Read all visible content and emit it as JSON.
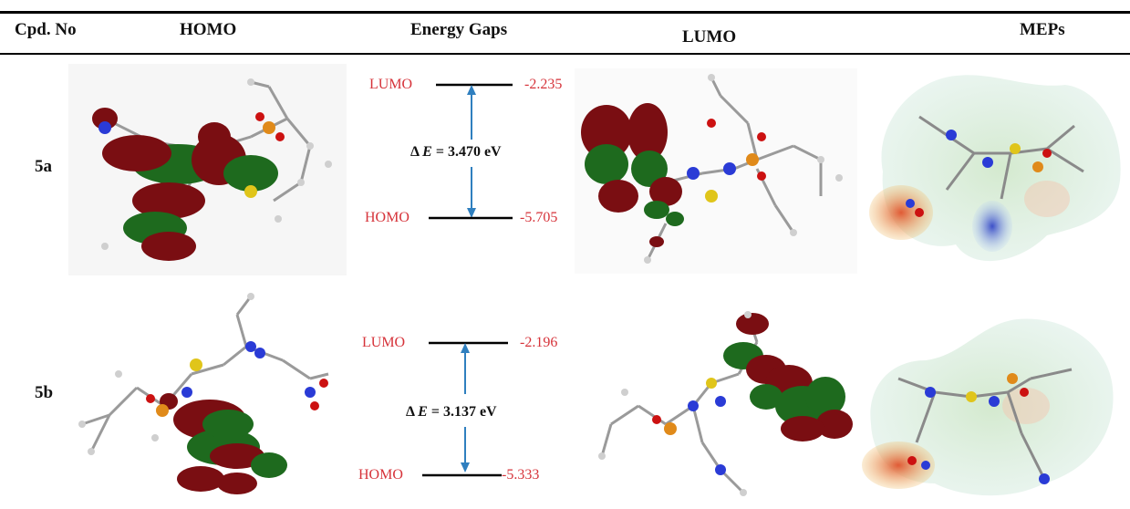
{
  "headers": {
    "cpd": "Cpd. No",
    "homo": "HOMO",
    "gap": "Energy Gaps",
    "lumo": "LUMO",
    "mep": "MEPs"
  },
  "rows": [
    {
      "cpd": "5a",
      "lumo_label": "LUMO",
      "lumo_value": "-2.235",
      "homo_label": "HOMO",
      "homo_value": "-5.705",
      "gap_prefix": "Δ",
      "gap_var": "E",
      "gap_text": " = 3.470 eV"
    },
    {
      "cpd": "5b",
      "lumo_label": "LUMO",
      "lumo_value": "-2.196",
      "homo_label": "HOMO",
      "homo_value": "-5.333",
      "gap_prefix": "Δ",
      "gap_var": "E",
      "gap_text": " = 3.137 eV"
    }
  ],
  "colors": {
    "label_red": "#d6333a",
    "arrow_blue": "#2f7fbf",
    "orbital_red": "#7a0e12",
    "orbital_green": "#1e6a1e"
  }
}
